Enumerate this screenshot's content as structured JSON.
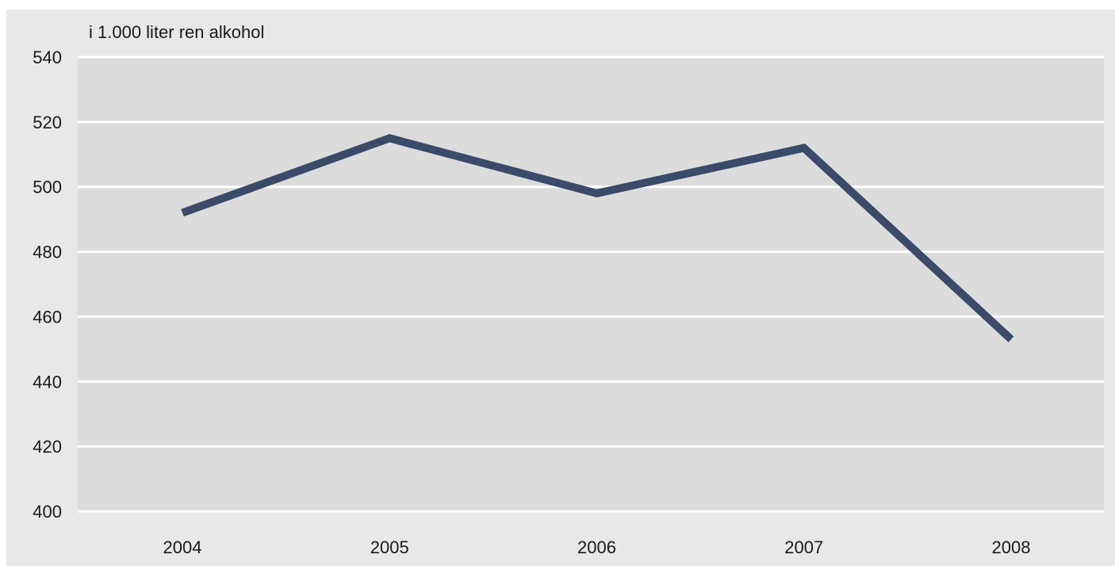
{
  "chart_data": {
    "type": "line",
    "unit_label": "i 1.000 liter ren alkohol",
    "categories": [
      "2004",
      "2005",
      "2006",
      "2007",
      "2008"
    ],
    "series": [
      {
        "values": [
          492,
          515,
          498,
          512,
          453
        ],
        "color": "#3c4a69"
      }
    ],
    "ylim": [
      400,
      540
    ],
    "yticks": [
      400,
      420,
      440,
      460,
      480,
      500,
      520,
      540
    ],
    "grid": true,
    "plot_background": "#dcdcdc",
    "figure_background": "#e8e8e8",
    "grid_color": "#ffffff"
  }
}
